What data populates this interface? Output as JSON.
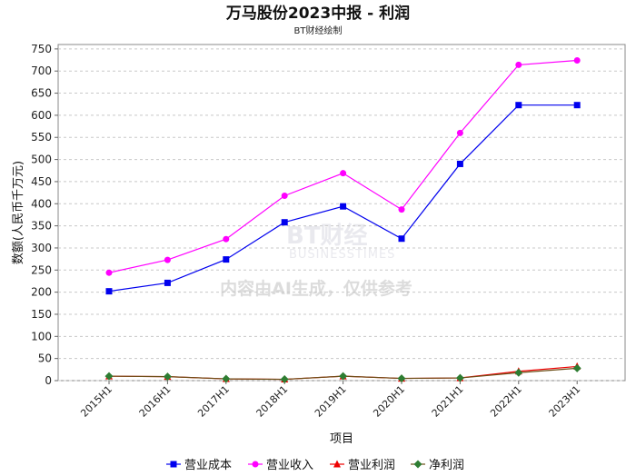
{
  "title": "万马股份2023中报 - 利润",
  "subtitle": "BT财经绘制",
  "watermark": {
    "brand": "BT财经",
    "brand_en": "BUSINESSTIMES",
    "note": "内容由AI生成，仅供参考"
  },
  "chart_data": {
    "type": "line",
    "title": "万马股份2023中报 - 利润",
    "subtitle": "BT财经绘制",
    "xlabel": "项目",
    "ylabel": "数额(人民币千万元)",
    "ylim": [
      0,
      760
    ],
    "yticks": [
      0,
      50,
      100,
      150,
      200,
      250,
      300,
      350,
      400,
      450,
      500,
      550,
      600,
      650,
      700,
      750
    ],
    "grid": true,
    "legend_position": "bottom",
    "categories": [
      "2015H1",
      "2016H1",
      "2017H1",
      "2018H1",
      "2019H1",
      "2020H1",
      "2021H1",
      "2022H1",
      "2023H1"
    ],
    "series": [
      {
        "name": "营业成本",
        "color": "#0000ee",
        "marker": "square",
        "values": [
          202,
          221,
          274,
          358,
          394,
          321,
          490,
          623,
          623
        ]
      },
      {
        "name": "营业收入",
        "color": "#ff00ff",
        "marker": "circle",
        "values": [
          244,
          273,
          320,
          418,
          469,
          387,
          560,
          714,
          724
        ]
      },
      {
        "name": "营业利润",
        "color": "#ee0000",
        "marker": "triangle",
        "values": [
          10,
          9,
          4,
          3,
          10,
          5,
          6,
          21,
          32
        ]
      },
      {
        "name": "净利润",
        "color": "#2e7d32",
        "marker": "diamond",
        "line_color": "#6b4e16",
        "values": [
          10,
          9,
          4,
          3,
          10,
          5,
          6,
          18,
          28
        ]
      }
    ]
  }
}
